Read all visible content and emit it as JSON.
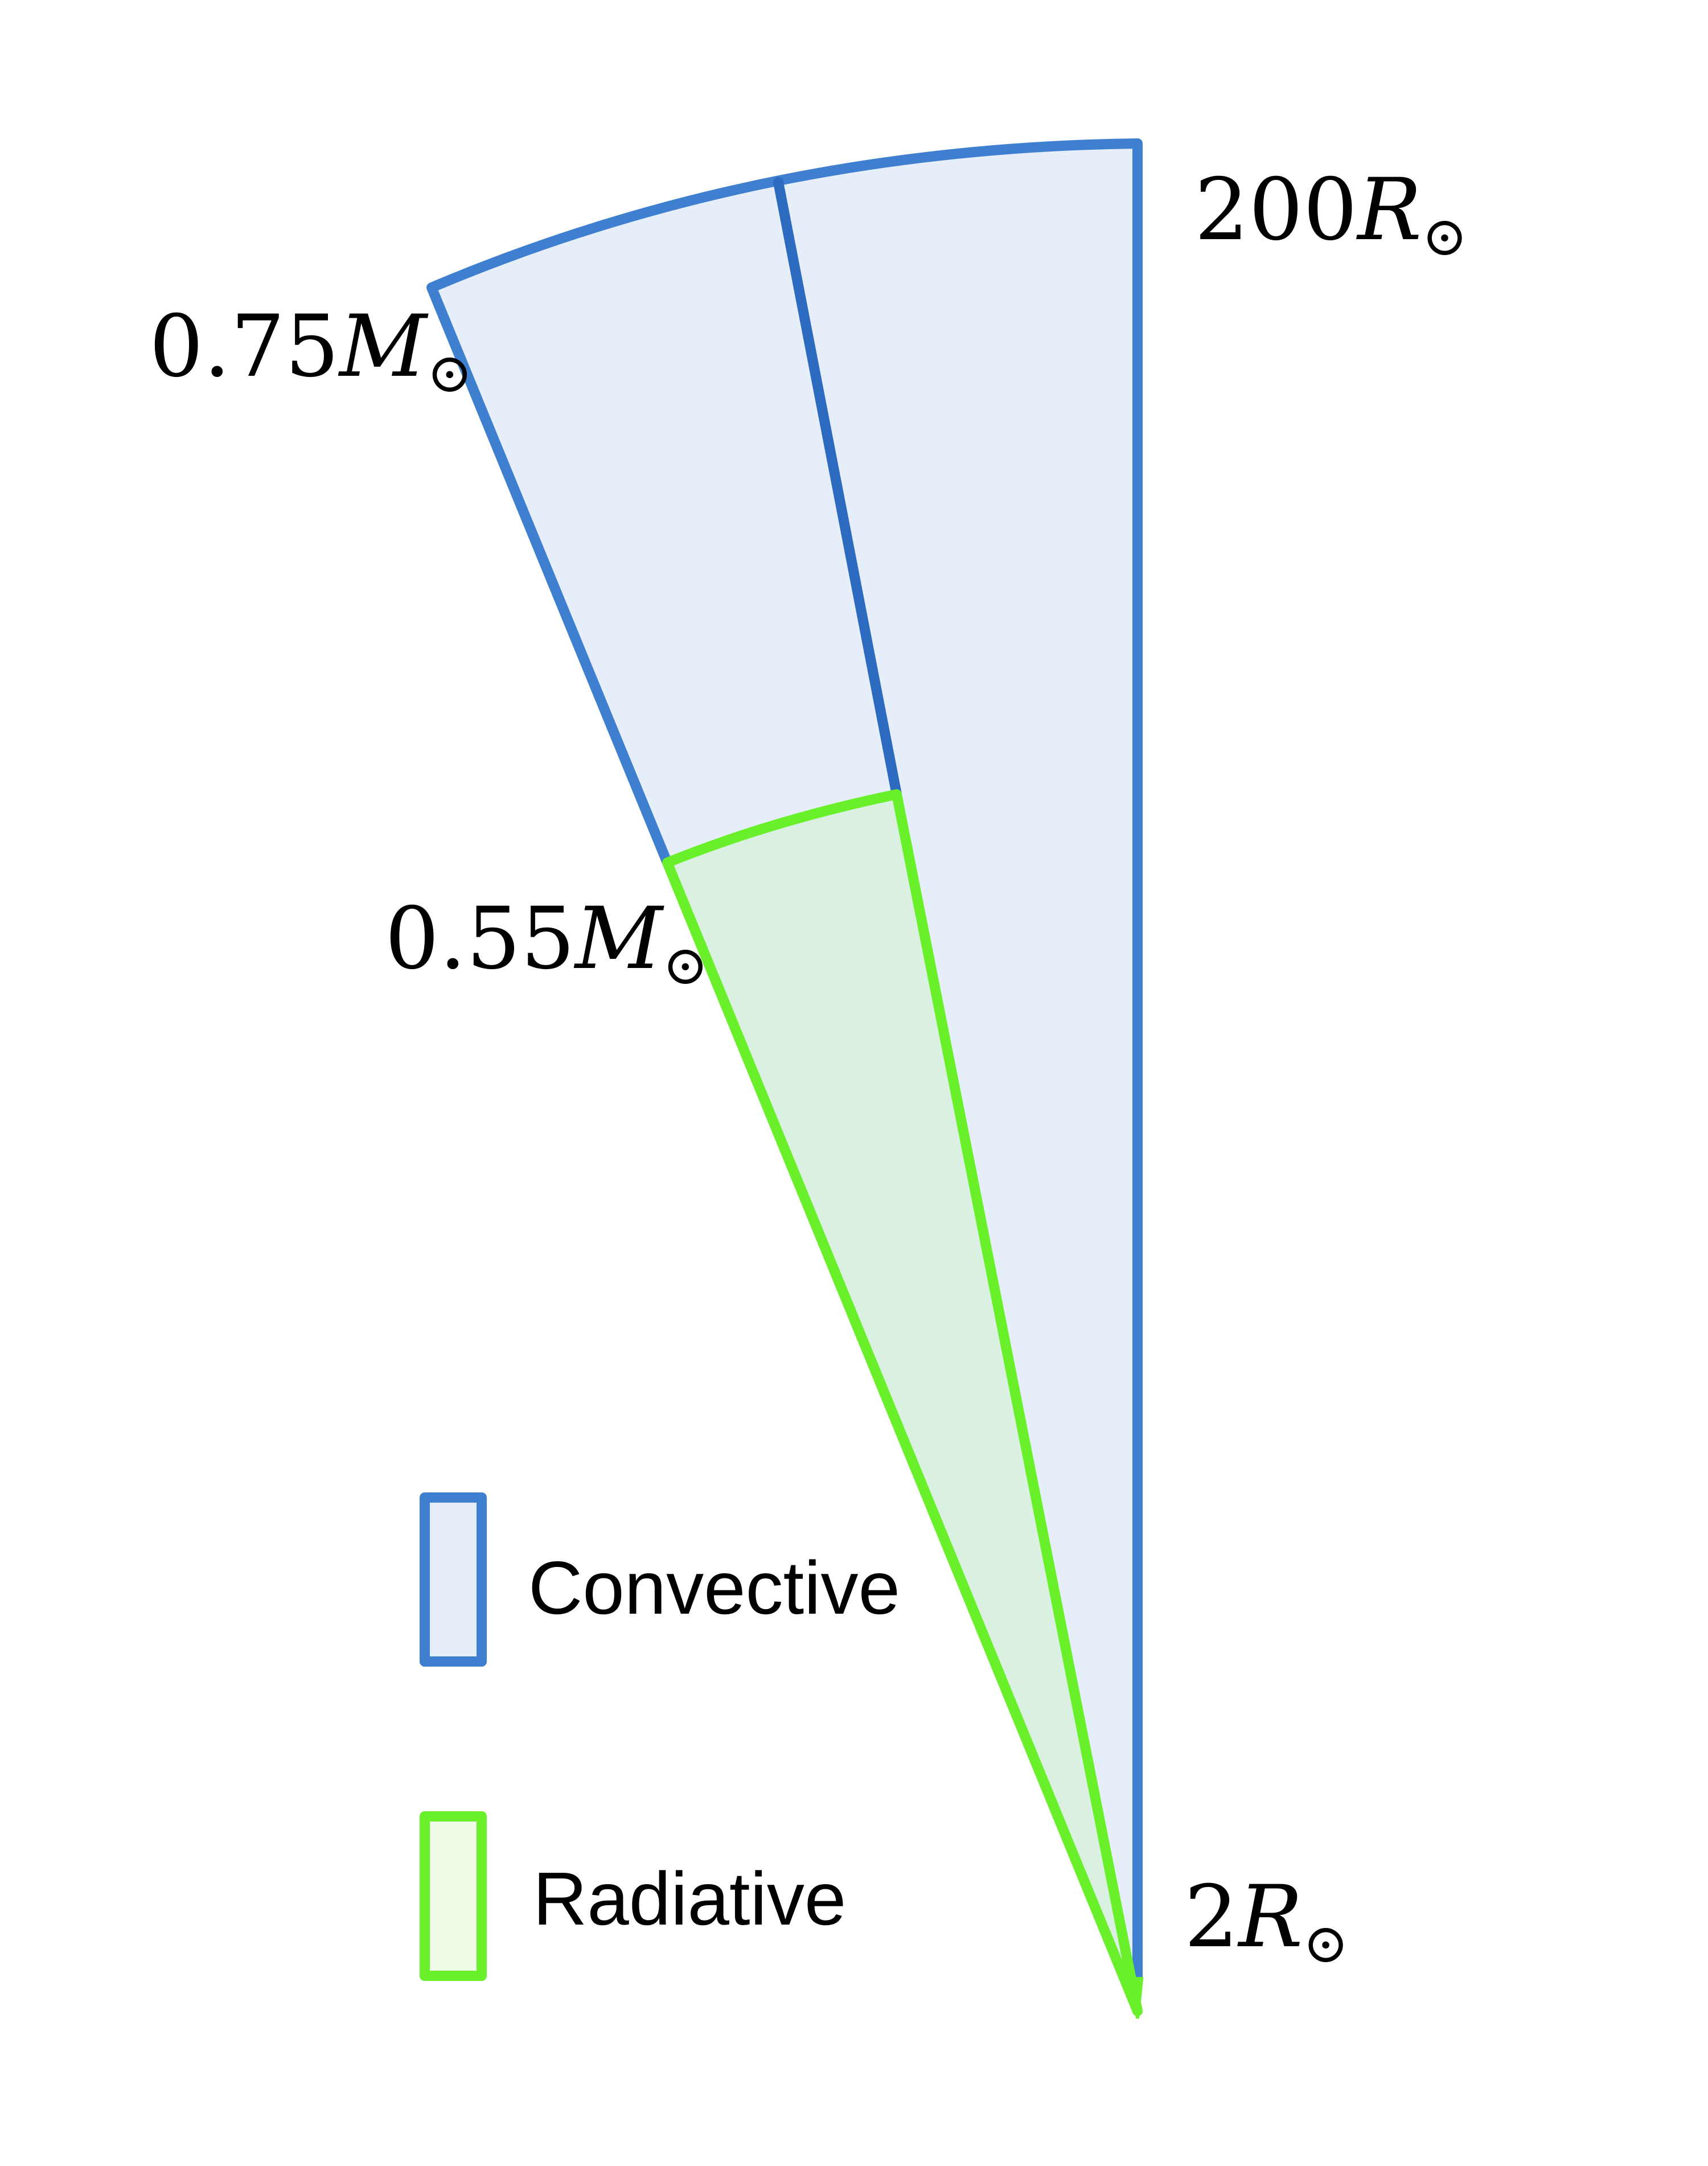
{
  "labels": {
    "outer_radius": {
      "number": "200",
      "symbol": "R",
      "sub": "⊙"
    },
    "inner_radius": {
      "number": "2",
      "symbol": "R",
      "sub": "⊙"
    },
    "mass_outer": {
      "number": "0.75",
      "symbol": "M",
      "sub": "⊙"
    },
    "mass_inner": {
      "number": "0.55",
      "symbol": "M",
      "sub": "⊙"
    }
  },
  "legend": {
    "convective": "Convective",
    "radiative": "Radiative"
  },
  "colors": {
    "convective_stroke": "#3f7fcf",
    "convective_dark": "#2c6bbf",
    "convective_fill": "#e6eff9",
    "radiative_stroke": "#69f02a",
    "radiative_fill": "#daf0e1",
    "legend_radiative_fill": "#eefbe6"
  }
}
